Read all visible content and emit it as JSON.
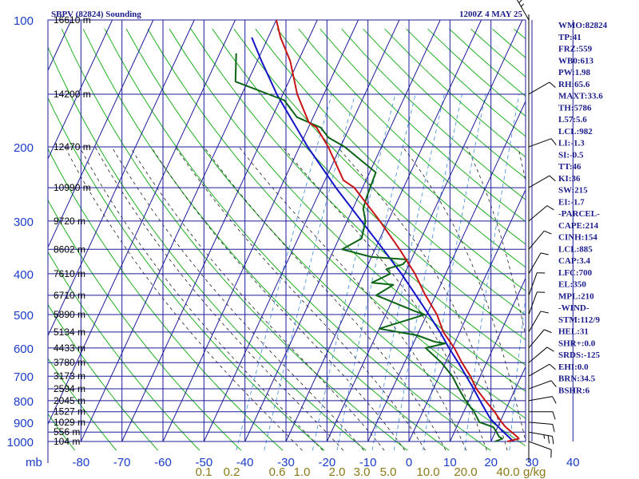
{
  "header": {
    "station": "SBPV (82824) Sounding",
    "time": "1200Z  4 MAY 25"
  },
  "colors": {
    "grid": "#1c1c9a",
    "isotherm": "#1c1c9a",
    "dry_adiabat": "#20b020",
    "moist_adiabat": "#202020",
    "mixing_ratio": "#3c8cdc",
    "temperature": "#c81414",
    "dewpoint": "#0a6414",
    "parcel": "#1414c8",
    "label_text": "#1c1c8c",
    "axis_text": "#1c3cc8",
    "mixing_text": "#8a7a1a"
  },
  "chart_data": {
    "type": "line",
    "subtype": "skew-T log-P sounding",
    "pressure_levels_mb": [
      100,
      200,
      300,
      400,
      500,
      600,
      700,
      800,
      900,
      1000
    ],
    "pressure_unit": "mb",
    "height_labels": [
      {
        "p": 100,
        "label": "16610 m"
      },
      {
        "p": 150,
        "label": "14200 m"
      },
      {
        "p": 200,
        "label": "12470 m"
      },
      {
        "p": 250,
        "label": "10990 m"
      },
      {
        "p": 300,
        "label": "9720 m"
      },
      {
        "p": 350,
        "label": "8602 m"
      },
      {
        "p": 400,
        "label": "7610 m"
      },
      {
        "p": 450,
        "label": "6710 m"
      },
      {
        "p": 500,
        "label": "5890 m"
      },
      {
        "p": 550,
        "label": "5134 m"
      },
      {
        "p": 600,
        "label": "4433 m"
      },
      {
        "p": 650,
        "label": "3780 m"
      },
      {
        "p": 700,
        "label": "3173 m"
      },
      {
        "p": 750,
        "label": "2594 m"
      },
      {
        "p": 800,
        "label": "2045 m"
      },
      {
        "p": 850,
        "label": "1527 m"
      },
      {
        "p": 900,
        "label": "1029 m"
      },
      {
        "p": 950,
        "label": "556 m"
      },
      {
        "p": 1000,
        "label": "104 m"
      }
    ],
    "temperature_ticks_c": [
      -80,
      -70,
      -60,
      -50,
      -40,
      -30,
      -20,
      -10,
      0,
      10,
      20,
      30,
      40
    ],
    "mixing_ratio_ticks": [
      "0.1",
      "0.2",
      "0.6",
      "1.0",
      "2.0",
      "3.0",
      "5.0",
      "10.0",
      "20.0",
      "40.0"
    ],
    "mixing_ratio_unit": "g/kg",
    "temperature_profile": [
      [
        1000,
        24.0
      ],
      [
        985,
        26.5
      ],
      [
        975,
        25.9
      ],
      [
        950,
        24.0
      ],
      [
        925,
        22.0
      ],
      [
        900,
        20.4
      ],
      [
        850,
        17.5
      ],
      [
        800,
        14.0
      ],
      [
        750,
        10.5
      ],
      [
        700,
        7.6
      ],
      [
        650,
        4.0
      ],
      [
        600,
        0.5
      ],
      [
        550,
        -4.0
      ],
      [
        500,
        -7.5
      ],
      [
        450,
        -12.5
      ],
      [
        400,
        -17.5
      ],
      [
        350,
        -24.0
      ],
      [
        300,
        -32.0
      ],
      [
        250,
        -42.0
      ],
      [
        240,
        -45.5
      ],
      [
        200,
        -53.0
      ],
      [
        180,
        -58.0
      ],
      [
        175,
        -60.5
      ],
      [
        150,
        -66.5
      ],
      [
        125,
        -72.0
      ],
      [
        110,
        -77.0
      ],
      [
        100,
        -80.0
      ]
    ],
    "dewpoint_profile": [
      [
        1000,
        21.0
      ],
      [
        985,
        22.5
      ],
      [
        975,
        21.5
      ],
      [
        950,
        20.3
      ],
      [
        925,
        19.0
      ],
      [
        900,
        15.0
      ],
      [
        850,
        12.5
      ],
      [
        800,
        9.2
      ],
      [
        750,
        6.2
      ],
      [
        700,
        3.2
      ],
      [
        650,
        -1.0
      ],
      [
        600,
        -6.5
      ],
      [
        585,
        -2.2
      ],
      [
        580,
        -5.0
      ],
      [
        560,
        -10.0
      ],
      [
        540,
        -20.0
      ],
      [
        500,
        -10.5
      ],
      [
        490,
        -13.5
      ],
      [
        475,
        -17.5
      ],
      [
        450,
        -24.5
      ],
      [
        425,
        -21.5
      ],
      [
        420,
        -27.0
      ],
      [
        400,
        -23.5
      ],
      [
        390,
        -25.0
      ],
      [
        380,
        -21.5
      ],
      [
        370,
        -21.0
      ],
      [
        365,
        -30.0
      ],
      [
        350,
        -38.0
      ],
      [
        330,
        -34.5
      ],
      [
        300,
        -35.5
      ],
      [
        280,
        -37.5
      ],
      [
        260,
        -38.0
      ],
      [
        230,
        -38.5
      ],
      [
        200,
        -49.0
      ],
      [
        190,
        -54.0
      ],
      [
        180,
        -57.0
      ],
      [
        170,
        -64.0
      ],
      [
        155,
        -69.0
      ],
      [
        140,
        -83.0
      ],
      [
        120,
        -86.0
      ]
    ],
    "parcel_profile": [
      [
        1000,
        25.5
      ],
      [
        950,
        22.0
      ],
      [
        900,
        18.5
      ],
      [
        885,
        17.4
      ],
      [
        850,
        15.5
      ],
      [
        800,
        12.7
      ],
      [
        750,
        9.8
      ],
      [
        700,
        6.6
      ],
      [
        650,
        3.1
      ],
      [
        600,
        -0.8
      ],
      [
        550,
        -4.8
      ],
      [
        500,
        -9.5
      ],
      [
        450,
        -14.8
      ],
      [
        400,
        -20.8
      ],
      [
        350,
        -28.0
      ],
      [
        300,
        -36.5
      ],
      [
        250,
        -46.5
      ],
      [
        200,
        -58.0
      ],
      [
        150,
        -71.5
      ],
      [
        125,
        -79.0
      ],
      [
        110,
        -84.0
      ]
    ],
    "wind_barbs": [
      {
        "p": 1000,
        "dir": 110,
        "kt": 10
      },
      {
        "p": 950,
        "dir": 100,
        "kt": 15
      },
      {
        "p": 900,
        "dir": 95,
        "kt": 12
      },
      {
        "p": 850,
        "dir": 90,
        "kt": 10
      },
      {
        "p": 800,
        "dir": 80,
        "kt": 10
      },
      {
        "p": 750,
        "dir": 70,
        "kt": 10
      },
      {
        "p": 700,
        "dir": 60,
        "kt": 10
      },
      {
        "p": 650,
        "dir": 50,
        "kt": 10
      },
      {
        "p": 600,
        "dir": 40,
        "kt": 10
      },
      {
        "p": 550,
        "dir": 30,
        "kt": 10
      },
      {
        "p": 500,
        "dir": 20,
        "kt": 10
      },
      {
        "p": 450,
        "dir": 20,
        "kt": 10
      },
      {
        "p": 400,
        "dir": 30,
        "kt": 10
      },
      {
        "p": 350,
        "dir": 40,
        "kt": 10
      },
      {
        "p": 300,
        "dir": 50,
        "kt": 10
      },
      {
        "p": 250,
        "dir": 60,
        "kt": 10
      },
      {
        "p": 200,
        "dir": 70,
        "kt": 10
      },
      {
        "p": 150,
        "dir": 60,
        "kt": 10
      },
      {
        "p": 100,
        "dir": 330,
        "kt": 15
      }
    ],
    "indices": [
      "WMO:82824",
      "TP:41",
      "FRZ:559",
      "WB0:613",
      "PW:1.98",
      "RH:65.6",
      "MAXT:33.6",
      "TH:5786",
      "L57:5.6",
      "LCL:982",
      "LI:-1.3",
      "SI:-0.5",
      "TT:46",
      "KI:36",
      "SW:215",
      "EI:-1.7",
      "-PARCEL-",
      "CAPE:214",
      "CINH:154",
      "LCL:885",
      "CAP:3.4",
      "LFC:700",
      "EL:350",
      "MPL:210",
      "-WIND-",
      "STM:112/9",
      "HEL:31",
      "SHR+:0.0",
      "SRDS:-125",
      "EHI:0.0",
      "BRN:34.5",
      "BSHR:6"
    ]
  }
}
